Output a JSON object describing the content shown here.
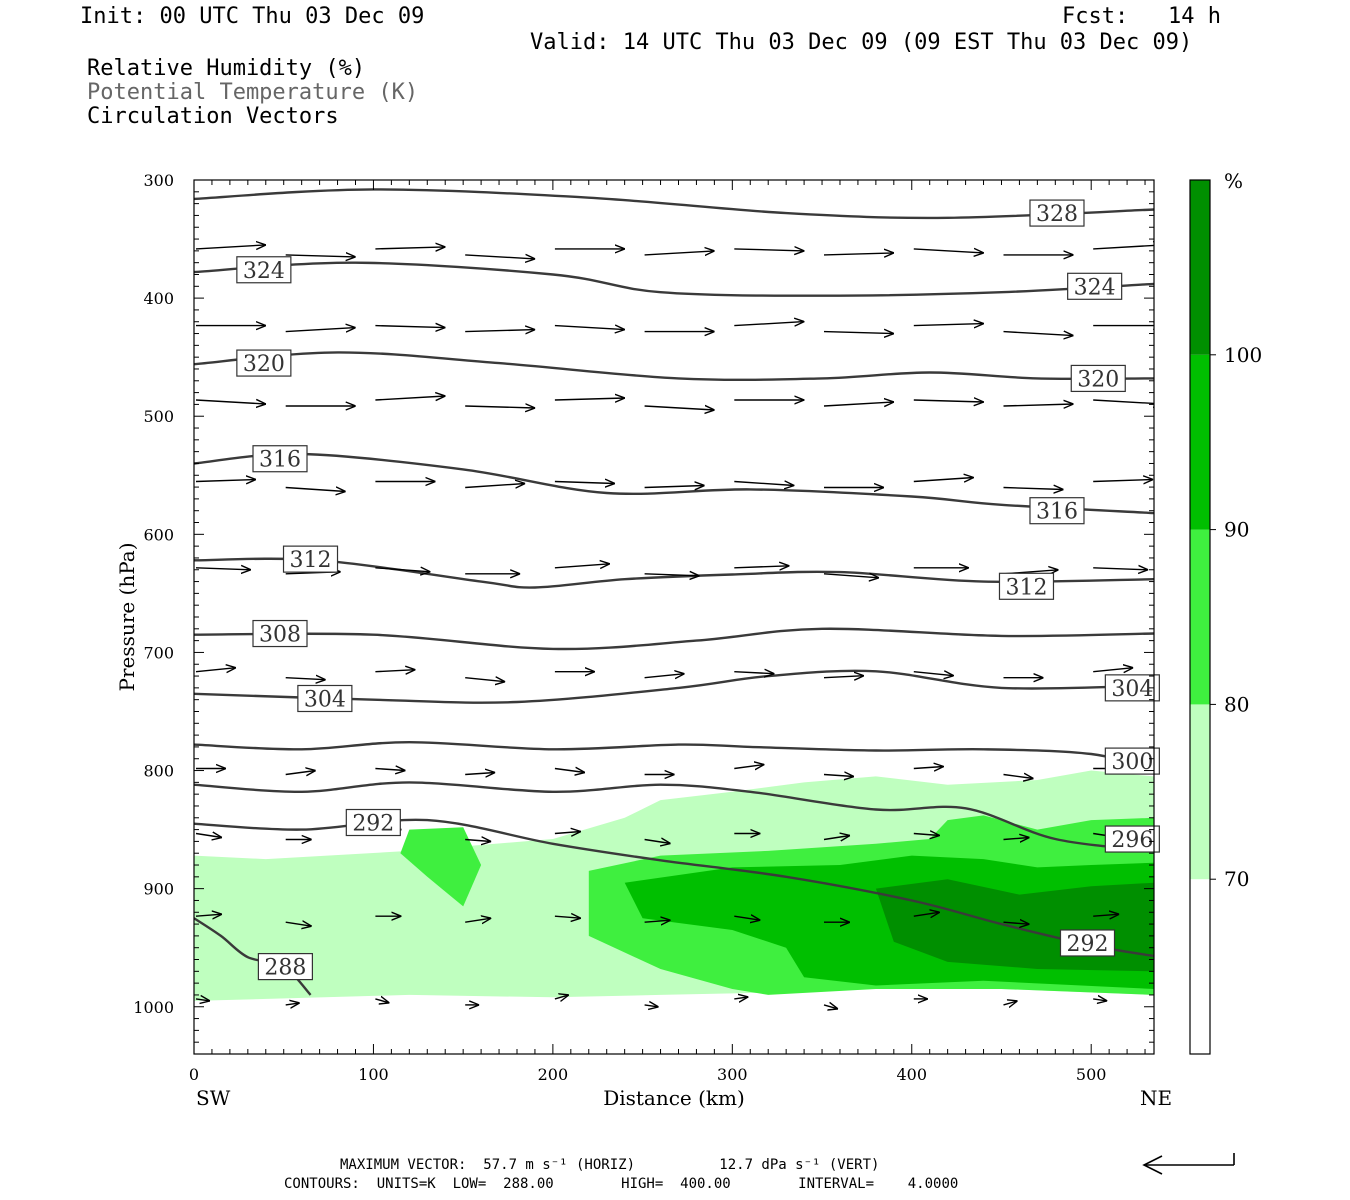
{
  "header": {
    "init": "Init: 00 UTC Thu 03 Dec 09",
    "fcst": "Fcst:   14 h",
    "valid": "Valid: 14 UTC Thu 03 Dec 09 (09 EST Thu 03 Dec 09)",
    "field1": "Relative Humidity (%)",
    "field2": "Potential Temperature (K)",
    "field3": "Circulation Vectors"
  },
  "footer": {
    "max_vector": "MAXIMUM VECTOR:  57.7 m s⁻¹ (HORIZ)          12.7 dPa s⁻¹ (VERT)",
    "contours": "CONTOURS:  UNITS=K  LOW=  288.00        HIGH=  400.00        INTERVAL=    4.0000"
  },
  "colors": {
    "rh_70": "#bfffbf",
    "rh_80": "#3fef3f",
    "rh_90": "#00bf00",
    "rh_100": "#008f00",
    "theta_line": "#3a3a3a"
  },
  "chart_data": {
    "type": "cross-section",
    "xlabel": "Distance (km)",
    "ylabel": "Pressure (hPa)",
    "xlim": [
      0,
      535
    ],
    "ylim": [
      1040,
      300
    ],
    "y_log": false,
    "x_ticks": [
      0,
      100,
      200,
      300,
      400,
      500
    ],
    "y_ticks": [
      300,
      400,
      500,
      600,
      700,
      800,
      900,
      1000
    ],
    "x_end_labels": {
      "left": "SW",
      "right": "NE"
    },
    "colorbar": {
      "unit": "%",
      "levels": [
        70,
        80,
        90,
        100
      ],
      "colors": [
        "#ffffff",
        "#bfffbf",
        "#3fef3f",
        "#00bf00",
        "#008f00"
      ]
    },
    "rh_regions": [
      {
        "level": 70,
        "points": [
          [
            0,
            872
          ],
          [
            40,
            875
          ],
          [
            120,
            868
          ],
          [
            200,
            858
          ],
          [
            240,
            840
          ],
          [
            260,
            825
          ],
          [
            300,
            818
          ],
          [
            340,
            810
          ],
          [
            380,
            805
          ],
          [
            420,
            812
          ],
          [
            470,
            808
          ],
          [
            500,
            800
          ],
          [
            535,
            805
          ],
          [
            535,
            990
          ],
          [
            400,
            982
          ],
          [
            320,
            988
          ],
          [
            260,
            990
          ],
          [
            200,
            992
          ],
          [
            120,
            990
          ],
          [
            0,
            995
          ]
        ]
      },
      {
        "level": 80,
        "points": [
          [
            120,
            850
          ],
          [
            150,
            848
          ],
          [
            160,
            880
          ],
          [
            150,
            915
          ],
          [
            130,
            890
          ],
          [
            115,
            870
          ]
        ]
      },
      {
        "level": 80,
        "points": [
          [
            220,
            885
          ],
          [
            260,
            872
          ],
          [
            320,
            868
          ],
          [
            380,
            862
          ],
          [
            410,
            858
          ],
          [
            420,
            842
          ],
          [
            440,
            838
          ],
          [
            470,
            850
          ],
          [
            500,
            842
          ],
          [
            535,
            840
          ],
          [
            535,
            990
          ],
          [
            450,
            985
          ],
          [
            380,
            985
          ],
          [
            320,
            990
          ],
          [
            300,
            985
          ],
          [
            260,
            968
          ],
          [
            220,
            940
          ]
        ]
      },
      {
        "level": 90,
        "points": [
          [
            240,
            895
          ],
          [
            300,
            882
          ],
          [
            360,
            880
          ],
          [
            400,
            872
          ],
          [
            440,
            875
          ],
          [
            470,
            882
          ],
          [
            500,
            880
          ],
          [
            535,
            878
          ],
          [
            535,
            985
          ],
          [
            440,
            978
          ],
          [
            380,
            982
          ],
          [
            340,
            975
          ],
          [
            330,
            950
          ],
          [
            300,
            935
          ],
          [
            250,
            925
          ]
        ]
      },
      {
        "level": 100,
        "points": [
          [
            380,
            900
          ],
          [
            420,
            892
          ],
          [
            460,
            905
          ],
          [
            500,
            898
          ],
          [
            535,
            895
          ],
          [
            535,
            970
          ],
          [
            470,
            968
          ],
          [
            420,
            962
          ],
          [
            390,
            945
          ]
        ]
      }
    ],
    "theta_contours": [
      {
        "label": "328",
        "label_pos": [
          467,
          328
        ],
        "points": [
          [
            0,
            316
          ],
          [
            100,
            308
          ],
          [
            220,
            315
          ],
          [
            330,
            328
          ],
          [
            420,
            332
          ],
          [
            535,
            325
          ]
        ]
      },
      {
        "label": "324",
        "label_pos": [
          25,
          376
        ],
        "points": [
          [
            0,
            378
          ],
          [
            90,
            370
          ],
          [
            200,
            380
          ],
          [
            260,
            395
          ],
          [
            350,
            398
          ],
          [
            450,
            395
          ],
          [
            535,
            388
          ]
        ]
      },
      {
        "label": "324",
        "label_pos": [
          488,
          390
        ],
        "points": []
      },
      {
        "label": "320",
        "label_pos": [
          25,
          455
        ],
        "points": [
          [
            0,
            456
          ],
          [
            80,
            446
          ],
          [
            170,
            455
          ],
          [
            270,
            468
          ],
          [
            350,
            468
          ],
          [
            410,
            463
          ],
          [
            470,
            468
          ],
          [
            535,
            468
          ]
        ]
      },
      {
        "label": "320",
        "label_pos": [
          490,
          468
        ],
        "points": []
      },
      {
        "label": "316",
        "label_pos": [
          34,
          536
        ],
        "points": [
          [
            0,
            540
          ],
          [
            60,
            532
          ],
          [
            150,
            545
          ],
          [
            230,
            565
          ],
          [
            310,
            562
          ],
          [
            400,
            568
          ],
          [
            450,
            575
          ],
          [
            535,
            582
          ]
        ]
      },
      {
        "label": "316",
        "label_pos": [
          467,
          580
        ],
        "points": []
      },
      {
        "label": "312",
        "label_pos": [
          51,
          621
        ],
        "points": [
          [
            0,
            622
          ],
          [
            70,
            622
          ],
          [
            160,
            640
          ],
          [
            190,
            645
          ],
          [
            240,
            638
          ],
          [
            300,
            634
          ],
          [
            360,
            632
          ],
          [
            440,
            640
          ],
          [
            535,
            638
          ]
        ]
      },
      {
        "label": "312",
        "label_pos": [
          450,
          644
        ],
        "points": []
      },
      {
        "label": "308",
        "label_pos": [
          34,
          684
        ],
        "points": [
          [
            0,
            685
          ],
          [
            100,
            685
          ],
          [
            200,
            697
          ],
          [
            280,
            690
          ],
          [
            350,
            680
          ],
          [
            450,
            686
          ],
          [
            535,
            684
          ]
        ]
      },
      {
        "label": "304",
        "label_pos": [
          59,
          739
        ],
        "points": [
          [
            0,
            735
          ],
          [
            100,
            740
          ],
          [
            180,
            742
          ],
          [
            270,
            730
          ],
          [
            320,
            720
          ],
          [
            380,
            716
          ],
          [
            450,
            730
          ],
          [
            535,
            728
          ]
        ]
      },
      {
        "label": "304",
        "label_pos": [
          509,
          730
        ],
        "points": []
      },
      {
        "label": "300",
        "label_pos": [
          509,
          792
        ],
        "points": [
          [
            0,
            778
          ],
          [
            60,
            782
          ],
          [
            120,
            776
          ],
          [
            200,
            782
          ],
          [
            270,
            778
          ],
          [
            310,
            780
          ],
          [
            380,
            783
          ],
          [
            440,
            782
          ],
          [
            500,
            786
          ],
          [
            535,
            800
          ]
        ]
      },
      {
        "label": "296",
        "label_pos": [
          509,
          858
        ],
        "points": [
          [
            0,
            812
          ],
          [
            60,
            818
          ],
          [
            120,
            810
          ],
          [
            200,
            818
          ],
          [
            260,
            812
          ],
          [
            310,
            818
          ],
          [
            380,
            833
          ],
          [
            430,
            832
          ],
          [
            480,
            858
          ],
          [
            535,
            868
          ]
        ]
      },
      {
        "label": "292",
        "label_pos": [
          86,
          844
        ],
        "points": [
          [
            0,
            845
          ],
          [
            60,
            850
          ],
          [
            130,
            842
          ],
          [
            200,
            862
          ],
          [
            260,
            876
          ],
          [
            330,
            890
          ],
          [
            400,
            910
          ],
          [
            450,
            930
          ],
          [
            500,
            948
          ],
          [
            535,
            957
          ]
        ]
      },
      {
        "label": "292",
        "label_pos": [
          484,
          946
        ],
        "points": []
      },
      {
        "label": "288",
        "label_pos": [
          37,
          966
        ],
        "points": [
          [
            0,
            925
          ],
          [
            15,
            940
          ],
          [
            30,
            958
          ],
          [
            50,
            966
          ],
          [
            65,
            990
          ]
        ]
      }
    ]
  }
}
